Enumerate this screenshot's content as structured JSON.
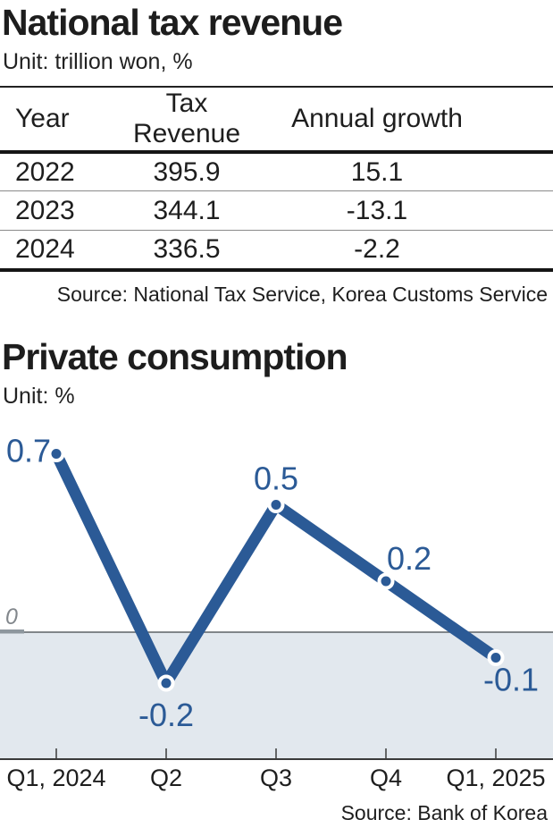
{
  "chart_data": [
    {
      "type": "table",
      "title": "National tax revenue",
      "unit": "Unit: trillion won, %",
      "columns": [
        "Year",
        "Tax Revenue",
        "Annual growth"
      ],
      "rows": [
        [
          "2022",
          "395.9",
          "15.1"
        ],
        [
          "2023",
          "344.1",
          "-13.1"
        ],
        [
          "2024",
          "336.5",
          "-2.2"
        ]
      ],
      "source": "Source: National Tax Service, Korea Customs Service"
    },
    {
      "type": "line",
      "title": "Private consumption",
      "unit": "Unit: %",
      "categories": [
        "Q1, 2024",
        "Q2",
        "Q3",
        "Q4",
        "Q1, 2025"
      ],
      "values": [
        0.7,
        -0.2,
        0.5,
        0.2,
        -0.1
      ],
      "labels": [
        "0.7",
        "-0.2",
        "0.5",
        "0.2",
        "-0.1"
      ],
      "zero_label": "0",
      "ylim": [
        -0.5,
        0.85
      ],
      "grid": false,
      "legend": false,
      "line_color": "#2b5a96",
      "label_color": "#2b5a96",
      "marker_ring_color": "#ffffff",
      "negative_area_color": "#e2e8ee",
      "axis_color": "#3a3a3a",
      "zero_line_color": "#5d6267",
      "zero_tick_color": "#8e979e",
      "source": "Source: Bank of Korea"
    }
  ]
}
